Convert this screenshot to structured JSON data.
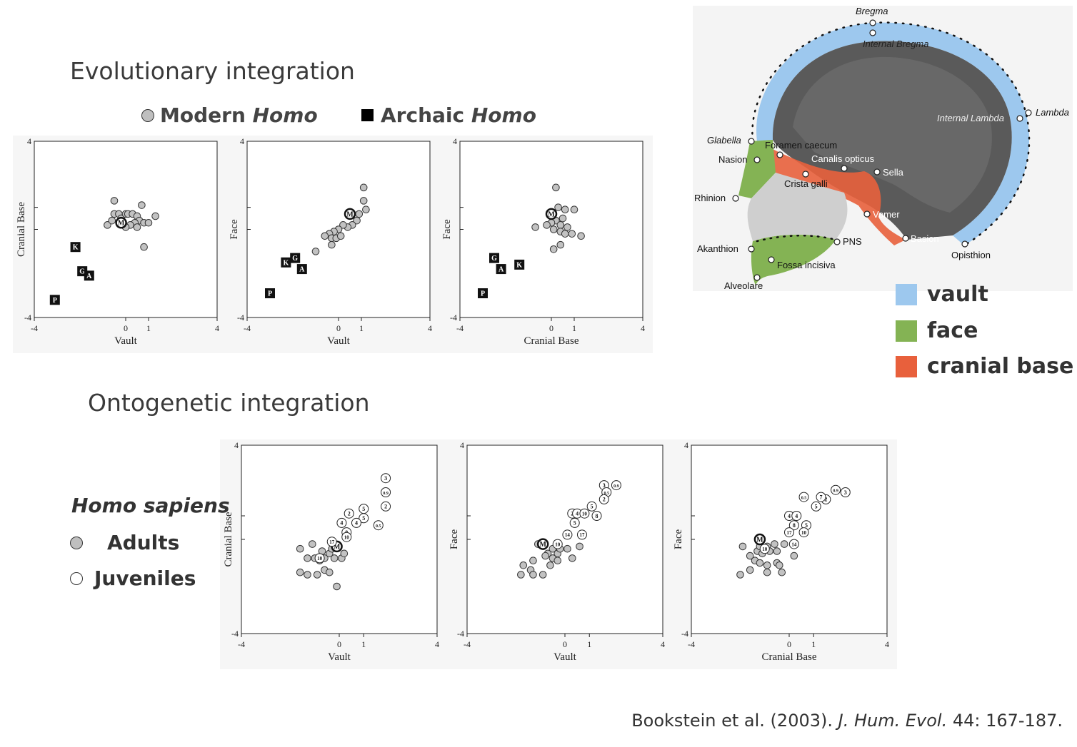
{
  "titles": {
    "evolutionary": "Evolutionary integration",
    "ontogenetic": "Ontogenetic integration"
  },
  "legend_top": {
    "modern_prefix": "Modern ",
    "modern_italic": "Homo",
    "archaic_prefix": "Archaic ",
    "archaic_italic": "Homo"
  },
  "region_legend": [
    {
      "label": "vault",
      "color": "#9dc8ee"
    },
    {
      "label": "face",
      "color": "#84b354"
    },
    {
      "label": "cranial base",
      "color": "#e8603c"
    }
  ],
  "hs_legend": {
    "title": "Homo sapiens",
    "adults": "Adults",
    "juveniles": "Juveniles"
  },
  "citation": {
    "authors": "Bookstein et al. (2003). ",
    "journal": "J. Hum. Evol.",
    "rest": " 44: 167-187."
  },
  "skull_labels": {
    "bregma": "Bregma",
    "internal_bregma": "Internal Bregma",
    "lambda": "Lambda",
    "internal_lambda": "Internal Lambda",
    "glabella": "Glabella",
    "foramen_caecum": "Foramen caecum",
    "nasion": "Nasion",
    "canalis_opticus": "Canalis opticus",
    "sella": "Sella",
    "crista_galli": "Crista galli",
    "rhinion": "Rhinion",
    "vomer": "Vomer",
    "akanthion": "Akanthion",
    "pns": "PNS",
    "basion": "Basion",
    "opisthion": "Opisthion",
    "fossa_incisiva": "Fossa incisiva",
    "alveolare": "Alveolare"
  },
  "chart_data": [
    {
      "type": "scatter",
      "id": "evo1",
      "xlabel": "Vault",
      "ylabel": "Cranial Base",
      "xlim": [
        -4,
        4
      ],
      "ylim": [
        -4,
        4
      ],
      "xticks": [
        "-4",
        "0",
        "1",
        "4"
      ],
      "yticks": [
        "4",
        "-4"
      ],
      "series": [
        {
          "name": "Modern Homo",
          "marker": "gray-circle",
          "points": [
            [
              -0.5,
              1.3
            ],
            [
              -0.5,
              0.7
            ],
            [
              -0.3,
              0.7
            ],
            [
              -0.2,
              0.5
            ],
            [
              0,
              0.7
            ],
            [
              0.1,
              0.7
            ],
            [
              0.3,
              0.7
            ],
            [
              0.5,
              0.6
            ],
            [
              0.7,
              1.1
            ],
            [
              0.6,
              0.4
            ],
            [
              0.8,
              0.3
            ],
            [
              1.0,
              0.3
            ],
            [
              1.3,
              0.6
            ],
            [
              0.4,
              0.3
            ],
            [
              0.5,
              0.1
            ],
            [
              0.2,
              0.2
            ],
            [
              0,
              0.1
            ],
            [
              -0.8,
              0.2
            ],
            [
              -0.6,
              0.4
            ],
            [
              0.8,
              -0.8
            ]
          ]
        },
        {
          "name": "Modern mean",
          "marker": "label-circle",
          "points": [
            [
              -0.2,
              0.3,
              "M"
            ]
          ]
        },
        {
          "name": "Archaic Homo",
          "marker": "label-square",
          "points": [
            [
              -2.2,
              -0.8,
              "K"
            ],
            [
              -1.9,
              -1.9,
              "G"
            ],
            [
              -1.6,
              -2.1,
              "A"
            ],
            [
              -3.1,
              -3.2,
              "P"
            ]
          ]
        }
      ]
    },
    {
      "type": "scatter",
      "id": "evo2",
      "xlabel": "Vault",
      "ylabel": "Face",
      "xlim": [
        -4,
        4
      ],
      "ylim": [
        -4,
        4
      ],
      "xticks": [
        "-4",
        "0",
        "1",
        "4"
      ],
      "yticks": [
        "4",
        "-4"
      ],
      "series": [
        {
          "name": "Modern Homo",
          "marker": "gray-circle",
          "points": [
            [
              1.1,
              1.9
            ],
            [
              1.1,
              1.3
            ],
            [
              1.2,
              0.9
            ],
            [
              0.9,
              0.7
            ],
            [
              0.8,
              0.4
            ],
            [
              0.6,
              0.2
            ],
            [
              0.4,
              0.1
            ],
            [
              0.2,
              0.2
            ],
            [
              0,
              0
            ],
            [
              -0.2,
              -0.1
            ],
            [
              -0.4,
              -0.2
            ],
            [
              -0.6,
              -0.3
            ],
            [
              -0.3,
              -0.4
            ],
            [
              -0.1,
              -0.4
            ],
            [
              0.1,
              -0.3
            ],
            [
              -0.3,
              -0.7
            ],
            [
              -1,
              -1
            ]
          ]
        },
        {
          "name": "Modern mean",
          "marker": "label-circle",
          "points": [
            [
              0.5,
              0.7,
              "M"
            ]
          ]
        },
        {
          "name": "Archaic Homo",
          "marker": "label-square",
          "points": [
            [
              -2.3,
              -1.5,
              "K"
            ],
            [
              -1.9,
              -1.3,
              "G"
            ],
            [
              -1.6,
              -1.8,
              "A"
            ],
            [
              -3,
              -2.9,
              "P"
            ]
          ]
        }
      ]
    },
    {
      "type": "scatter",
      "id": "evo3",
      "xlabel": "Cranial Base",
      "ylabel": "Face",
      "xlim": [
        -4,
        4
      ],
      "ylim": [
        -4,
        4
      ],
      "xticks": [
        "-4",
        "0",
        "1",
        "4"
      ],
      "yticks": [
        "4",
        "-4"
      ],
      "series": [
        {
          "name": "Modern Homo",
          "marker": "gray-circle",
          "points": [
            [
              0.2,
              1.9
            ],
            [
              0.3,
              1.0
            ],
            [
              0.6,
              0.9
            ],
            [
              1.0,
              0.9
            ],
            [
              0.5,
              0.5
            ],
            [
              0.2,
              0.4
            ],
            [
              0,
              0.3
            ],
            [
              0.4,
              0.2
            ],
            [
              0.7,
              0.1
            ],
            [
              0.4,
              -0.1
            ],
            [
              0.6,
              -0.2
            ],
            [
              0.9,
              -0.2
            ],
            [
              1.3,
              -0.3
            ],
            [
              0.1,
              0
            ],
            [
              -0.2,
              0.2
            ],
            [
              -0.7,
              0.1
            ],
            [
              0.4,
              -0.7
            ],
            [
              0.1,
              -0.9
            ]
          ]
        },
        {
          "name": "Modern mean",
          "marker": "label-circle",
          "points": [
            [
              0,
              0.7,
              "M"
            ]
          ]
        },
        {
          "name": "Archaic Homo",
          "marker": "label-square",
          "points": [
            [
              -2.5,
              -1.3,
              "G"
            ],
            [
              -2.2,
              -1.8,
              "A"
            ],
            [
              -1.4,
              -1.6,
              "K"
            ],
            [
              -3,
              -2.9,
              "P"
            ]
          ]
        }
      ]
    },
    {
      "type": "scatter",
      "id": "ont1",
      "xlabel": "Vault",
      "ylabel": "Cranial Base",
      "xlim": [
        -4,
        4
      ],
      "ylim": [
        -4,
        4
      ],
      "xticks": [
        "-4",
        "0",
        "1",
        "4"
      ],
      "yticks": [
        "4",
        "-4"
      ],
      "series": [
        {
          "name": "Adults",
          "marker": "gray-circle",
          "points": [
            [
              -1.6,
              -0.4
            ],
            [
              -1.1,
              -0.2
            ],
            [
              -1.3,
              -0.8
            ],
            [
              -1,
              -0.8
            ],
            [
              -0.8,
              -0.9
            ],
            [
              -0.6,
              -0.8
            ],
            [
              -0.4,
              -0.6
            ],
            [
              -0.3,
              -0.4
            ],
            [
              -0.7,
              -0.5
            ],
            [
              -0.2,
              -0.8
            ],
            [
              -1.6,
              -1.4
            ],
            [
              -1.3,
              -1.5
            ],
            [
              -0.9,
              -1.5
            ],
            [
              -0.6,
              -1.3
            ],
            [
              -0.4,
              -1.4
            ],
            [
              -0.1,
              -2
            ],
            [
              0.1,
              -0.8
            ],
            [
              0.2,
              -0.6
            ]
          ]
        },
        {
          "name": "Mean",
          "marker": "label-circle",
          "points": [
            [
              -0.1,
              -0.3,
              "M"
            ]
          ]
        },
        {
          "name": "Juveniles",
          "marker": "label-white",
          "points": [
            [
              1.9,
              2.6,
              "3"
            ],
            [
              1.9,
              2.0,
              "0.9"
            ],
            [
              1.9,
              1.4,
              "2"
            ],
            [
              1.6,
              0.6,
              "0.5"
            ],
            [
              1,
              0.9,
              "5"
            ],
            [
              1,
              1.3,
              "5"
            ],
            [
              0.4,
              1.1,
              "2"
            ],
            [
              0.1,
              0.7,
              "4"
            ],
            [
              0.7,
              0.7,
              "4"
            ],
            [
              0.3,
              0.3,
              "8"
            ],
            [
              0.3,
              0.1,
              "10"
            ],
            [
              -0.3,
              -0.1,
              "17"
            ],
            [
              -0.8,
              -0.8,
              "10"
            ]
          ]
        }
      ]
    },
    {
      "type": "scatter",
      "id": "ont2",
      "xlabel": "Vault",
      "ylabel": "Face",
      "xlim": [
        -4,
        4
      ],
      "ylim": [
        -4,
        4
      ],
      "xticks": [
        "-4",
        "0",
        "1",
        "4"
      ],
      "yticks": [
        "4",
        "-4"
      ],
      "series": [
        {
          "name": "Adults",
          "marker": "gray-circle",
          "points": [
            [
              -1.1,
              -0.2
            ],
            [
              -0.9,
              -0.2
            ],
            [
              -0.7,
              -0.6
            ],
            [
              -0.5,
              -0.4
            ],
            [
              -0.3,
              -0.6
            ],
            [
              -0.2,
              -0.4
            ],
            [
              0.1,
              -0.4
            ],
            [
              0.6,
              -0.3
            ],
            [
              0.3,
              -0.8
            ],
            [
              -0.8,
              -0.7
            ],
            [
              -1.3,
              -0.9
            ],
            [
              -1.4,
              -1.3
            ],
            [
              -1.7,
              -1.1
            ],
            [
              -1.8,
              -1.5
            ],
            [
              -1.3,
              -1.5
            ],
            [
              -0.9,
              -1.5
            ],
            [
              -0.5,
              -0.8
            ],
            [
              -0.3,
              -0.9
            ],
            [
              -0.6,
              -1.1
            ]
          ]
        },
        {
          "name": "Mean",
          "marker": "label-circle",
          "points": [
            [
              -0.9,
              -0.2,
              "M"
            ]
          ]
        },
        {
          "name": "Juveniles",
          "marker": "label-white",
          "points": [
            [
              1.6,
              2.3,
              "3"
            ],
            [
              2.1,
              2.3,
              "0.9"
            ],
            [
              1.7,
              2.0,
              "0.5"
            ],
            [
              1.6,
              1.7,
              "2"
            ],
            [
              1.1,
              1.4,
              "5"
            ],
            [
              0.3,
              1.1,
              "2"
            ],
            [
              0.5,
              1.1,
              "4"
            ],
            [
              0.8,
              1.1,
              "10"
            ],
            [
              1.3,
              1.0,
              "8"
            ],
            [
              0.4,
              0.7,
              "5"
            ],
            [
              0.1,
              0.2,
              "14"
            ],
            [
              0.7,
              0.2,
              "17"
            ],
            [
              -0.3,
              -0.2,
              "10"
            ]
          ]
        }
      ]
    },
    {
      "type": "scatter",
      "id": "ont3",
      "xlabel": "Cranial Base",
      "ylabel": "Face",
      "xlim": [
        -4,
        4
      ],
      "ylim": [
        -4,
        4
      ],
      "xticks": [
        "-4",
        "0",
        "1",
        "4"
      ],
      "yticks": [
        "4",
        "-4"
      ],
      "series": [
        {
          "name": "Adults",
          "marker": "gray-circle",
          "points": [
            [
              -1.9,
              -0.3
            ],
            [
              -1.6,
              -0.7
            ],
            [
              -1.3,
              -0.5
            ],
            [
              -1.1,
              -0.6
            ],
            [
              -0.9,
              -0.3
            ],
            [
              -0.6,
              -0.2
            ],
            [
              -0.5,
              -0.5
            ],
            [
              -0.2,
              -0.2
            ],
            [
              0.2,
              -0.7
            ],
            [
              -1.4,
              -0.9
            ],
            [
              -1.2,
              -1.0
            ],
            [
              -0.9,
              -1.1
            ],
            [
              -0.5,
              -1.0
            ],
            [
              -2.0,
              -1.5
            ],
            [
              -1.6,
              -1.3
            ],
            [
              -0.9,
              -1.4
            ],
            [
              -0.4,
              -1.1
            ],
            [
              -0.3,
              -1.4
            ],
            [
              -1.2,
              -0.3
            ],
            [
              -0.8,
              -0.5
            ]
          ]
        },
        {
          "name": "Mean",
          "marker": "label-circle",
          "points": [
            [
              -1.2,
              0,
              "M"
            ]
          ]
        },
        {
          "name": "Juveniles",
          "marker": "label-white",
          "points": [
            [
              1.9,
              2.1,
              "0.9"
            ],
            [
              2.3,
              2.0,
              "3"
            ],
            [
              0.6,
              1.8,
              "0.5"
            ],
            [
              1.5,
              1.7,
              "2"
            ],
            [
              1.1,
              1.4,
              "5"
            ],
            [
              1.3,
              1.8,
              "7"
            ],
            [
              0,
              1,
              "4"
            ],
            [
              0.3,
              1,
              "4"
            ],
            [
              0.2,
              0.6,
              "8"
            ],
            [
              0.7,
              0.6,
              "5"
            ],
            [
              0,
              0.3,
              "17"
            ],
            [
              0.6,
              0.3,
              "10"
            ],
            [
              0.2,
              -0.2,
              "14"
            ],
            [
              -1,
              -0.4,
              "10"
            ]
          ]
        }
      ]
    }
  ]
}
